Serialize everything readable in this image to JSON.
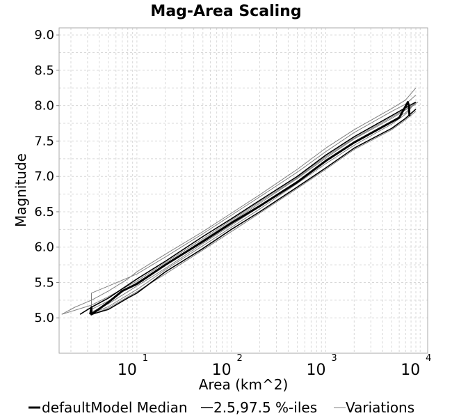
{
  "chart_data": {
    "type": "line",
    "title": "Mag-Area Scaling",
    "xlabel": "Area (km^2)",
    "ylabel": "Magnitude",
    "x_scale": "log",
    "xlim": [
      1.5,
      12000
    ],
    "ylim": [
      4.5,
      9.1
    ],
    "x_ticks": [
      {
        "base": "10",
        "exp": "1",
        "value": 10
      },
      {
        "base": "10",
        "exp": "2",
        "value": 100
      },
      {
        "base": "10",
        "exp": "3",
        "value": 1000
      },
      {
        "base": "10",
        "exp": "4",
        "value": 10000
      }
    ],
    "y_ticks": [
      "5.0",
      "5.5",
      "6.0",
      "6.5",
      "7.0",
      "7.5",
      "8.0",
      "8.5",
      "9.0"
    ],
    "grid": true,
    "legend_position": "bottom",
    "series": [
      {
        "name": "defaultModel Median",
        "style": "thick",
        "color": "#000000",
        "x": [
          3.2,
          3.3,
          3.3,
          5,
          7,
          10,
          20,
          50,
          100,
          200,
          500,
          1000,
          2000,
          4000,
          6000,
          7400,
          7600,
          7700
        ],
        "y": [
          5.05,
          5.15,
          5.05,
          5.22,
          5.38,
          5.48,
          5.75,
          6.08,
          6.34,
          6.58,
          6.92,
          7.22,
          7.48,
          7.7,
          7.83,
          8.05,
          8.0,
          7.85
        ]
      },
      {
        "name": "2.5,97.5 %-iles",
        "style": "medium",
        "color": "#000000",
        "x": [
          2.5,
          3.3,
          5,
          10,
          20,
          50,
          100,
          200,
          500,
          1000,
          2000,
          5000,
          7000,
          9000
        ],
        "y": [
          5.05,
          5.15,
          5.28,
          5.55,
          5.8,
          6.15,
          6.4,
          6.66,
          7.0,
          7.3,
          7.56,
          7.86,
          7.97,
          8.05
        ]
      },
      {
        "name": "",
        "style": "medium",
        "color": "#000000",
        "x": [
          3.3,
          5,
          8,
          10,
          20,
          50,
          100,
          200,
          500,
          1000,
          2000,
          5000,
          7000,
          9000
        ],
        "y": [
          5.05,
          5.12,
          5.28,
          5.35,
          5.65,
          5.98,
          6.25,
          6.5,
          6.85,
          7.12,
          7.4,
          7.68,
          7.82,
          7.95
        ]
      },
      {
        "name": "Variations",
        "style": "thin",
        "color": "#808080",
        "x": [
          1.6,
          2.2,
          3.3,
          5,
          8,
          10,
          20,
          50,
          100,
          200,
          500,
          1000,
          2000,
          5000,
          7000,
          9000
        ],
        "y": [
          5.05,
          5.15,
          5.25,
          5.38,
          5.55,
          5.65,
          5.9,
          6.22,
          6.48,
          6.74,
          7.1,
          7.4,
          7.66,
          7.96,
          8.08,
          8.25
        ]
      },
      {
        "name": "",
        "style": "thin",
        "color": "#808080",
        "x": [
          3.3,
          3.3,
          5,
          10,
          20,
          50,
          100,
          200,
          500,
          1000,
          2000,
          5000,
          7000,
          9000
        ],
        "y": [
          5.1,
          5.35,
          5.45,
          5.62,
          5.86,
          6.19,
          6.45,
          6.71,
          7.06,
          7.35,
          7.62,
          7.92,
          8.02,
          8.15
        ]
      },
      {
        "name": "",
        "style": "thin",
        "color": "#808080",
        "x": [
          1.6,
          3.3,
          5,
          10,
          20,
          50,
          100,
          200,
          500,
          1000,
          2000,
          5000,
          7000,
          9500
        ],
        "y": [
          5.05,
          5.18,
          5.3,
          5.52,
          5.78,
          6.12,
          6.38,
          6.64,
          6.98,
          7.28,
          7.54,
          7.84,
          7.95,
          8.05
        ]
      },
      {
        "name": "",
        "style": "thin",
        "color": "#808080",
        "x": [
          3.3,
          5,
          10,
          20,
          50,
          100,
          200,
          500,
          1000,
          2000,
          5000,
          7000,
          9000
        ],
        "y": [
          5.08,
          5.2,
          5.45,
          5.7,
          6.05,
          6.31,
          6.57,
          6.93,
          7.21,
          7.48,
          7.78,
          7.9,
          8.05
        ]
      },
      {
        "name": "",
        "style": "thin",
        "color": "#808080",
        "x": [
          3.3,
          5,
          10,
          20,
          50,
          100,
          200,
          500,
          1000,
          2000,
          5000,
          7000,
          9000
        ],
        "y": [
          5.06,
          5.16,
          5.4,
          5.68,
          6.02,
          6.28,
          6.54,
          6.9,
          7.18,
          7.44,
          7.74,
          7.88,
          8.05
        ]
      },
      {
        "name": "",
        "style": "thin",
        "color": "#808080",
        "x": [
          3.3,
          5,
          10,
          20,
          50,
          100,
          200,
          500,
          1000,
          2000,
          5000,
          7000,
          9000
        ],
        "y": [
          5.12,
          5.24,
          5.5,
          5.75,
          6.1,
          6.36,
          6.62,
          6.97,
          7.26,
          7.53,
          7.82,
          7.94,
          8.02
        ]
      },
      {
        "name": "",
        "style": "thin",
        "color": "#808080",
        "x": [
          3.3,
          5,
          10,
          20,
          50,
          100,
          200,
          500,
          1000,
          2000,
          5000,
          7000,
          9000
        ],
        "y": [
          5.04,
          5.14,
          5.37,
          5.62,
          5.96,
          6.22,
          6.48,
          6.83,
          7.1,
          7.38,
          7.66,
          7.8,
          7.92
        ]
      }
    ]
  },
  "legend": [
    {
      "label": "defaultModel Median",
      "style": "thick"
    },
    {
      "label": "2.5,97.5 %-iles",
      "style": "medium"
    },
    {
      "label": "Variations",
      "style": "thin"
    }
  ],
  "colors": {
    "plot_border": "#aaaaaa",
    "grid": "#d8d8d8",
    "variation_line": "#808080",
    "median_line": "#000000"
  }
}
